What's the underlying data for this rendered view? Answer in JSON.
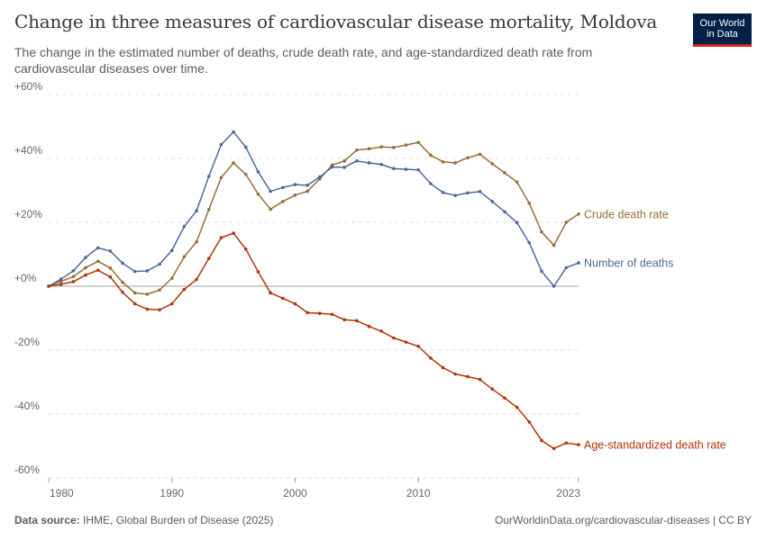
{
  "header": {
    "title": "Change in three measures of cardiovascular disease mortality, Moldova",
    "subtitle": "The change in the estimated number of deaths, crude death rate, and age-standardized death rate from cardiovascular diseases over time."
  },
  "logo": {
    "line1": "Our World",
    "line2": "in Data"
  },
  "footer": {
    "source_label": "Data source:",
    "source_text": "IHME, Global Burden of Disease (2025)",
    "right_text": "OurWorldinData.org/cardiovascular-diseases | CC BY"
  },
  "chart_data": {
    "type": "line",
    "title": "Change in three measures of cardiovascular disease mortality, Moldova",
    "xlim": [
      1980,
      2023
    ],
    "ylim": [
      -60,
      60
    ],
    "y_ticks": [
      60,
      40,
      20,
      0,
      -20,
      -40,
      -60
    ],
    "y_tick_labels": [
      "+60%",
      "+40%",
      "+20%",
      "+0%",
      "-20%",
      "-40%",
      "-60%"
    ],
    "x_ticks": [
      1980,
      1990,
      2000,
      2010,
      2023
    ],
    "x_tick_labels": [
      "1980",
      "1990",
      "2000",
      "2010",
      "2023"
    ],
    "grid": "horizontal dashed",
    "legend": "inline labels at line ends (right)",
    "x": [
      1980,
      1981,
      1982,
      1983,
      1984,
      1985,
      1986,
      1987,
      1988,
      1989,
      1990,
      1991,
      1992,
      1993,
      1994,
      1995,
      1996,
      1997,
      1998,
      1999,
      2000,
      2001,
      2002,
      2003,
      2004,
      2005,
      2006,
      2007,
      2008,
      2009,
      2010,
      2011,
      2012,
      2013,
      2014,
      2015,
      2016,
      2017,
      2018,
      2019,
      2020,
      2021,
      2022,
      2023
    ],
    "series": [
      {
        "name": "Crude death rate",
        "color": "#996d39",
        "values": [
          0,
          1.5,
          3,
          5.8,
          7.8,
          5.7,
          1.2,
          -2.1,
          -2.5,
          -1.2,
          2.5,
          9.2,
          13.9,
          24,
          34,
          38.6,
          35,
          28.8,
          24.1,
          26.5,
          28.5,
          29.7,
          33.6,
          37.9,
          39.2,
          42.6,
          43,
          43.6,
          43.4,
          44.2,
          45,
          41,
          38.9,
          38.6,
          40.2,
          41.3,
          38.3,
          35.5,
          32.6,
          26,
          17,
          12.8,
          20,
          22.6
        ]
      },
      {
        "name": "Number of deaths",
        "color": "#4c6a9c",
        "values": [
          0,
          2.2,
          4.8,
          9,
          12,
          11,
          7.2,
          4.6,
          4.8,
          6.9,
          11.2,
          18.7,
          23.6,
          34.4,
          44.3,
          48.3,
          43.5,
          35.8,
          29.7,
          30.9,
          31.8,
          31.6,
          34.2,
          37.3,
          37.2,
          39.2,
          38.6,
          38.1,
          36.8,
          36.6,
          36.4,
          32.1,
          29.3,
          28.4,
          29.2,
          29.6,
          26.5,
          23.3,
          19.9,
          13.6,
          4.7,
          0,
          5.8,
          7.3
        ]
      },
      {
        "name": "Age-standardized death rate",
        "color": "#b13507",
        "values": [
          0,
          0.6,
          1.4,
          3.5,
          5,
          2.9,
          -1.9,
          -5.5,
          -7.2,
          -7.4,
          -5.5,
          -1,
          2.1,
          8.7,
          15.2,
          16.6,
          11.6,
          4.5,
          -2.1,
          -3.8,
          -5.5,
          -8.3,
          -8.5,
          -8.8,
          -10.5,
          -10.8,
          -12.6,
          -14.1,
          -16.2,
          -17.5,
          -18.8,
          -22.5,
          -25.5,
          -27.5,
          -28.3,
          -29.2,
          -32.2,
          -35,
          -37.9,
          -42.5,
          -48.3,
          -50.8,
          -49.1,
          -49.6
        ]
      }
    ]
  }
}
